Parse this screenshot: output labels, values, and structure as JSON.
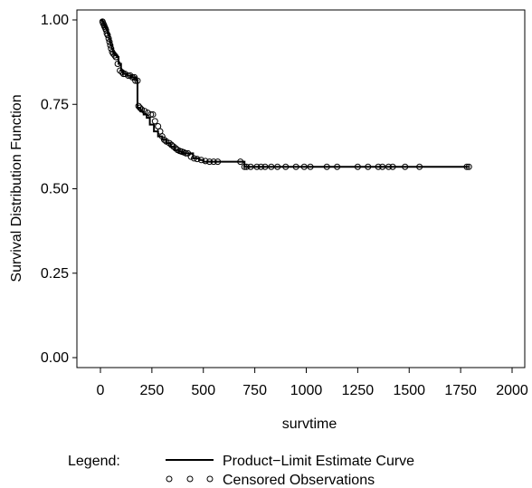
{
  "chart_data": {
    "type": "line",
    "xlabel": "survtime",
    "ylabel": "Survival Distribution Function",
    "xlim": [
      0,
      2000
    ],
    "ylim": [
      0,
      1
    ],
    "x_ticks": [
      "0",
      "250",
      "500",
      "750",
      "1000",
      "1250",
      "1500",
      "1750",
      "2000"
    ],
    "y_ticks": [
      "0.00",
      "0.25",
      "0.50",
      "0.75",
      "1.00"
    ],
    "grid": false,
    "legend": {
      "title": "Legend:",
      "placement": "bottom",
      "entries": [
        "Product−Limit Estimate Curve",
        "Censored Observations"
      ]
    },
    "series": [
      {
        "role": "Product-Limit Estimate Curve",
        "x": [
          0,
          10,
          14,
          18,
          22,
          26,
          30,
          34,
          38,
          42,
          46,
          50,
          55,
          60,
          66,
          72,
          80,
          88,
          100,
          110,
          130,
          150,
          175,
          180,
          195,
          210,
          225,
          240,
          260,
          280,
          300,
          320,
          340,
          360,
          380,
          400,
          450,
          480,
          500,
          700,
          1790
        ],
        "y": [
          1.0,
          0.995,
          0.99,
          0.985,
          0.98,
          0.975,
          0.97,
          0.96,
          0.955,
          0.945,
          0.935,
          0.925,
          0.915,
          0.905,
          0.9,
          0.895,
          0.89,
          0.87,
          0.85,
          0.84,
          0.835,
          0.83,
          0.82,
          0.74,
          0.73,
          0.72,
          0.71,
          0.69,
          0.67,
          0.655,
          0.645,
          0.635,
          0.625,
          0.615,
          0.61,
          0.605,
          0.59,
          0.585,
          0.58,
          0.565,
          0.565
        ]
      }
    ],
    "censored": {
      "x": [
        10,
        13,
        17,
        20,
        24,
        27,
        31,
        35,
        40,
        44,
        48,
        52,
        57,
        62,
        69,
        75,
        84,
        95,
        105,
        112,
        120,
        135,
        145,
        155,
        165,
        170,
        180,
        185,
        192,
        200,
        215,
        230,
        245,
        255,
        265,
        280,
        290,
        300,
        310,
        320,
        335,
        345,
        355,
        365,
        375,
        385,
        395,
        405,
        415,
        425,
        440,
        455,
        470,
        490,
        510,
        530,
        550,
        570,
        680,
        700,
        710,
        730,
        760,
        780,
        800,
        830,
        860,
        900,
        950,
        990,
        1020,
        1100,
        1150,
        1250,
        1300,
        1350,
        1370,
        1400,
        1420,
        1480,
        1550,
        1780,
        1790
      ],
      "y": [
        0.995,
        0.99,
        0.985,
        0.98,
        0.975,
        0.97,
        0.96,
        0.955,
        0.945,
        0.935,
        0.925,
        0.915,
        0.905,
        0.9,
        0.895,
        0.89,
        0.87,
        0.85,
        0.845,
        0.84,
        0.84,
        0.835,
        0.835,
        0.83,
        0.83,
        0.82,
        0.82,
        0.745,
        0.74,
        0.735,
        0.73,
        0.725,
        0.72,
        0.72,
        0.7,
        0.685,
        0.67,
        0.655,
        0.645,
        0.64,
        0.635,
        0.63,
        0.625,
        0.62,
        0.615,
        0.612,
        0.61,
        0.608,
        0.605,
        0.605,
        0.595,
        0.59,
        0.588,
        0.585,
        0.582,
        0.58,
        0.58,
        0.58,
        0.58,
        0.565,
        0.565,
        0.565,
        0.565,
        0.565,
        0.565,
        0.565,
        0.565,
        0.565,
        0.565,
        0.565,
        0.565,
        0.565,
        0.565,
        0.565,
        0.565,
        0.565,
        0.565,
        0.565,
        0.565,
        0.565,
        0.565,
        0.565,
        0.565
      ]
    }
  }
}
